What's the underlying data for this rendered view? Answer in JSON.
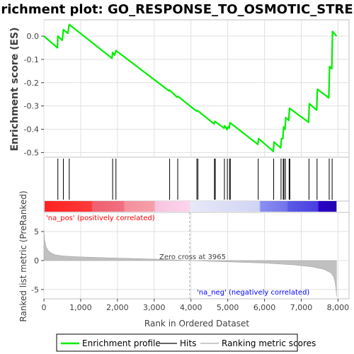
{
  "title": "Enrichment plot: GO_RESPONSE_TO_OSMOTIC_STRESS",
  "colors": {
    "enrichment_line": "#00ee00",
    "hits": "#000000",
    "ranking_fill": "#c0c0c0",
    "pos_text": "#ff0000",
    "neg_text": "#0000ff",
    "zero_text": "#404040"
  },
  "annotations": {
    "pos_label": "'na_pos' (positively correlated)",
    "neg_label": "'na_neg' (negatively correlated)",
    "zero_cross": "Zero cross at 3965"
  },
  "legend": {
    "items": [
      "Enrichment profile",
      "Hits",
      "Ranking metric scores"
    ],
    "placement": "bottom"
  },
  "chart_data": [
    {
      "type": "line",
      "name": "enrichment-profile",
      "ylabel": "Enrichment score (ES)",
      "xlim": [
        0,
        8300
      ],
      "ylim": [
        -0.52,
        0.07
      ],
      "yticks": [
        0.0,
        -0.1,
        -0.2,
        -0.3,
        -0.4,
        -0.5
      ],
      "ytick_labels": [
        "0.0",
        "-0.1",
        "-0.2",
        "-0.3",
        "-0.4",
        "-0.5"
      ],
      "grid": true,
      "points": [
        [
          0,
          0.0
        ],
        [
          370,
          -0.05
        ],
        [
          380,
          0.0
        ],
        [
          500,
          -0.018
        ],
        [
          530,
          0.028
        ],
        [
          650,
          0.012
        ],
        [
          690,
          0.05
        ],
        [
          1850,
          -0.095
        ],
        [
          1870,
          -0.07
        ],
        [
          1920,
          -0.082
        ],
        [
          1960,
          -0.062
        ],
        [
          3400,
          -0.235
        ],
        [
          3420,
          -0.232
        ],
        [
          3620,
          -0.262
        ],
        [
          3640,
          -0.258
        ],
        [
          4150,
          -0.322
        ],
        [
          4180,
          -0.32
        ],
        [
          4220,
          -0.325
        ],
        [
          4630,
          -0.377
        ],
        [
          4650,
          -0.366
        ],
        [
          4900,
          -0.395
        ],
        [
          4920,
          -0.385
        ],
        [
          4980,
          -0.402
        ],
        [
          5000,
          -0.39
        ],
        [
          5040,
          -0.395
        ],
        [
          5060,
          -0.372
        ],
        [
          5820,
          -0.465
        ],
        [
          5840,
          -0.44
        ],
        [
          6240,
          -0.495
        ],
        [
          6260,
          -0.455
        ],
        [
          6440,
          -0.48
        ],
        [
          6460,
          -0.44
        ],
        [
          6500,
          -0.44
        ],
        [
          6520,
          -0.39
        ],
        [
          6560,
          -0.4
        ],
        [
          6580,
          -0.35
        ],
        [
          6660,
          -0.362
        ],
        [
          6680,
          -0.31
        ],
        [
          7200,
          -0.37
        ],
        [
          7220,
          -0.29
        ],
        [
          7420,
          -0.318
        ],
        [
          7440,
          -0.228
        ],
        [
          7750,
          -0.265
        ],
        [
          7770,
          -0.13
        ],
        [
          7830,
          -0.14
        ],
        [
          7850,
          0.02
        ],
        [
          7960,
          0.0
        ]
      ]
    },
    {
      "type": "scatter",
      "name": "hits",
      "hit_ranks": [
        380,
        530,
        690,
        1870,
        1960,
        3420,
        3640,
        4160,
        4190,
        4640,
        4660,
        4910,
        4990,
        5050,
        5070,
        5830,
        6250,
        6450,
        6510,
        6530,
        6570,
        6670,
        6690,
        7210,
        7430,
        7760,
        7840
      ]
    },
    {
      "type": "area",
      "name": "ranking-metric",
      "ylabel": "Ranked list metric (PreRanked)",
      "xlabel": "Rank in Ordered Dataset",
      "xlim": [
        0,
        8300
      ],
      "ylim": [
        -6.6,
        8.3
      ],
      "yticks": [
        5,
        0,
        -5
      ],
      "ytick_labels": [
        "5",
        "0",
        "-5"
      ],
      "xticks": [
        0,
        1000,
        2000,
        3000,
        4000,
        5000,
        6000,
        7000,
        8000
      ],
      "xtick_labels": [
        "0",
        "1,000",
        "2,000",
        "3,000",
        "4,000",
        "5,000",
        "6,000",
        "7,000",
        "8,000"
      ],
      "zero_cross": 3965,
      "n_genes": 7960,
      "points": [
        [
          0,
          5.2
        ],
        [
          20,
          3.5
        ],
        [
          60,
          2.4
        ],
        [
          120,
          1.7
        ],
        [
          200,
          1.3
        ],
        [
          300,
          1.0
        ],
        [
          500,
          0.8
        ],
        [
          800,
          0.68
        ],
        [
          1200,
          0.58
        ],
        [
          2000,
          0.42
        ],
        [
          3000,
          0.25
        ],
        [
          3965,
          0.0
        ],
        [
          5000,
          -0.22
        ],
        [
          6000,
          -0.45
        ],
        [
          6800,
          -0.75
        ],
        [
          7300,
          -1.1
        ],
        [
          7600,
          -1.5
        ],
        [
          7800,
          -2.1
        ],
        [
          7880,
          -2.8
        ],
        [
          7920,
          -3.8
        ],
        [
          7950,
          -5.2
        ],
        [
          7960,
          -6.2
        ]
      ]
    }
  ]
}
